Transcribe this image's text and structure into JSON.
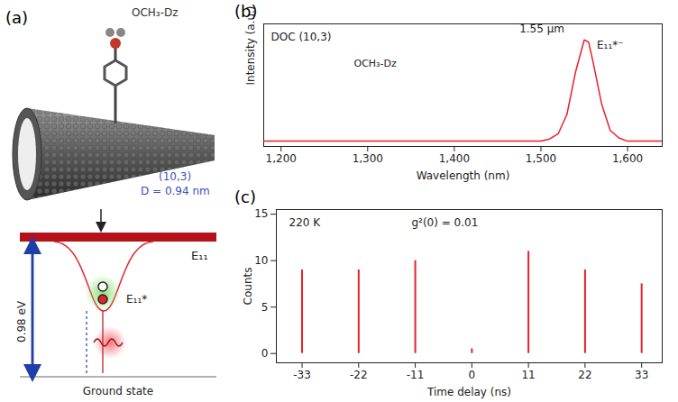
{
  "diagram": {
    "title": "(a)",
    "molecule": "OCH₃-Dz",
    "chirality": "(10,3)",
    "diameter": "D = 0.94 nm",
    "upper_level": "E₁₁",
    "trap_level": "E₁₁*",
    "gap": "0.98 eV",
    "ground": "Ground state"
  },
  "chart_data": [
    {
      "type": "line",
      "title": "(b)",
      "x_label": "Wavelength (nm)",
      "y_label": "Intensity (a.u.)",
      "annotations": [
        "DOC (10,3)",
        "OCH₃-Dz",
        "1.55 μm",
        "E₁₁*⁻"
      ],
      "x": [
        1180,
        1250,
        1300,
        1350,
        1400,
        1450,
        1500,
        1510,
        1520,
        1530,
        1540,
        1550,
        1555,
        1560,
        1570,
        1580,
        1590,
        1600,
        1640
      ],
      "values": [
        0.05,
        0.05,
        0.05,
        0.05,
        0.05,
        0.05,
        0.05,
        0.07,
        0.12,
        0.3,
        0.7,
        1.0,
        0.98,
        0.8,
        0.4,
        0.15,
        0.08,
        0.05,
        0.05
      ],
      "color": "#e8202a",
      "xlim": [
        1180,
        1640
      ],
      "ylim": [
        0,
        1.15
      ],
      "xticks": [
        {
          "value": 1200,
          "label": "1,200"
        },
        {
          "value": 1300,
          "label": "1,300"
        },
        {
          "value": 1400,
          "label": "1,400"
        },
        {
          "value": 1500,
          "label": "1,500"
        },
        {
          "value": 1600,
          "label": "1,600"
        }
      ],
      "tick_labels": "x"
    },
    {
      "type": "bar",
      "title": "(c)",
      "x_label": "Time delay (ns)",
      "y_label": "Counts",
      "annotations": [
        "220 K",
        "g²(0) = 0.01"
      ],
      "x": [
        -33,
        -22,
        -11,
        0,
        11,
        22,
        33
      ],
      "values": [
        9,
        9,
        10,
        0.5,
        11,
        9,
        7.5
      ],
      "color": "#e8202a",
      "xlim": [
        -38,
        37
      ],
      "ylim": [
        -1,
        15.5
      ],
      "xticks": [
        -33,
        -22,
        -11,
        0,
        11,
        22,
        33
      ],
      "yticks": [
        0,
        5,
        10,
        15
      ]
    }
  ]
}
